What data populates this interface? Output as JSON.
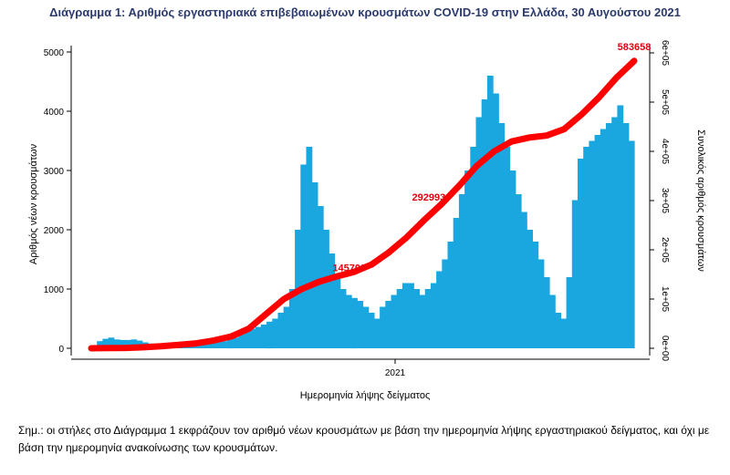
{
  "title": "Διάγραμμα 1: Αριθμός εργαστηριακά επιβεβαιωμένων κρουσμάτων COVID-19 στην Ελλάδα, 30 Αυγούστου 2021",
  "note": "Σημ.: οι στήλες στο Διάγραμμα 1 εκφράζουν τον αριθμό νέων κρουσμάτων με βάση την ημερομηνία λήψης εργαστηριακού δείγματος, και όχι με βάση την ημερομηνία ανακοίνωσης των κρουσμάτων.",
  "colors": {
    "bars": "#1aa7e0",
    "cumulative": "#ff0000",
    "annotation": "#e4000f",
    "title": "#2b3a6b"
  },
  "chart_data": {
    "type": "bar",
    "xlabel": "Ημερομηνία λήψης δείγματος",
    "ylabel_left": "Αριθμός νέων κρουσμάτων",
    "ylabel_right": "Συνολικός αριθμός κρουσμάτων",
    "x_tick_labels": [
      "2021"
    ],
    "y_left_ticks": [
      "0",
      "1000",
      "2000",
      "3000",
      "4000",
      "5000"
    ],
    "y_right_ticks": [
      "0e+00",
      "1e+05",
      "2e+05",
      "3e+05",
      "4e+05",
      "5e+05",
      "6e+05"
    ],
    "ylim_left": [
      0,
      5000
    ],
    "ylim_right": [
      0,
      600000
    ],
    "annotations": [
      "145700",
      "292993",
      "583658"
    ],
    "weekly_new_cases_series": {
      "name": "",
      "values": [
        40,
        120,
        160,
        180,
        150,
        140,
        140,
        150,
        130,
        100,
        80,
        60,
        60,
        60,
        60,
        60,
        60,
        70,
        80,
        90,
        90,
        100,
        110,
        120,
        150,
        180,
        230,
        280,
        330,
        360,
        400,
        450,
        500,
        600,
        700,
        1000,
        2000,
        3100,
        3400,
        2800,
        2400,
        2000,
        1600,
        1200,
        1000,
        900,
        850,
        800,
        700,
        600,
        500,
        700,
        800,
        900,
        1000,
        1100,
        1100,
        1000,
        900,
        1000,
        1100,
        1300,
        1500,
        1800,
        2200,
        2600,
        3000,
        3400,
        3900,
        4200,
        4600,
        4300,
        3800,
        3400,
        3000,
        2600,
        2300,
        2000,
        1800,
        1500,
        1200,
        900,
        600,
        500,
        1200,
        2500,
        3200,
        3400,
        3500,
        3600,
        3700,
        3800,
        3900,
        4100,
        3800,
        3500
      ]
    },
    "cumulative_series": {
      "name": "",
      "values": [
        0,
        300,
        800,
        2000,
        4000,
        7000,
        10000,
        16000,
        24000,
        40000,
        70000,
        100000,
        120000,
        135000,
        145700,
        155000,
        170000,
        195000,
        225000,
        260000,
        292993,
        330000,
        370000,
        400000,
        420000,
        428000,
        432000,
        445000,
        475000,
        510000,
        550000,
        583658
      ]
    }
  }
}
